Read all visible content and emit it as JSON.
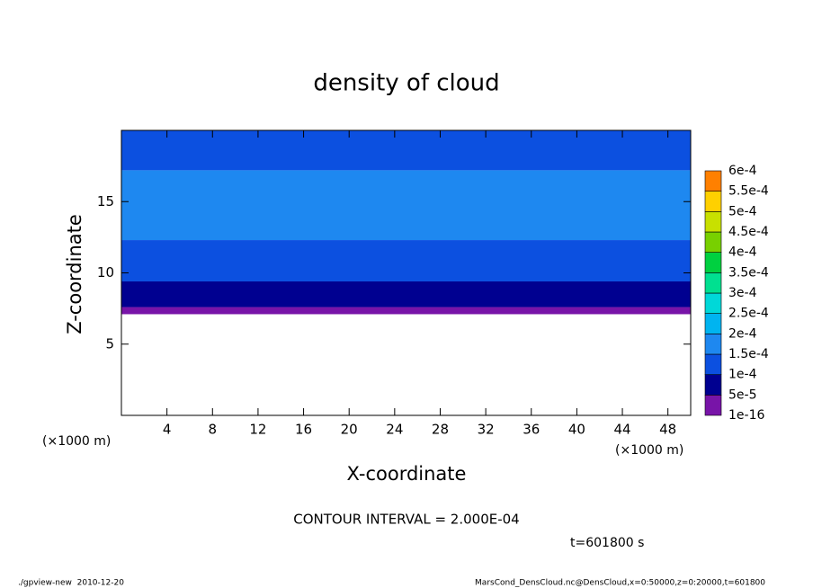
{
  "chart_data": {
    "type": "contour",
    "title": "density of cloud",
    "x_label": "X-coordinate",
    "y_label": "Z-coordinate",
    "x_unit_left": "(×1000 m)",
    "x_unit_right": "(×1000 m)",
    "xlim": [
      0,
      50
    ],
    "ylim": [
      0,
      20
    ],
    "xticks": [
      4,
      8,
      12,
      16,
      20,
      24,
      28,
      32,
      36,
      40,
      44,
      48
    ],
    "yticks": [
      5,
      10,
      15
    ],
    "levels": [
      {
        "value": 1e-16,
        "label": "1e-16"
      },
      {
        "value": 5e-05,
        "label": "5e-5"
      },
      {
        "value": 0.0001,
        "label": "1e-4"
      },
      {
        "value": 0.00015,
        "label": "1.5e-4"
      },
      {
        "value": 0.0002,
        "label": "2e-4"
      },
      {
        "value": 0.00025,
        "label": "2.5e-4"
      },
      {
        "value": 0.0003,
        "label": "3e-4"
      },
      {
        "value": 0.00035,
        "label": "3.5e-4"
      },
      {
        "value": 0.0004,
        "label": "4e-4"
      },
      {
        "value": 0.00045,
        "label": "4.5e-4"
      },
      {
        "value": 0.0005,
        "label": "5e-4"
      },
      {
        "value": 0.00055,
        "label": "5.5e-4"
      },
      {
        "value": 0.0006,
        "label": "6e-4"
      }
    ],
    "colors": [
      "#7814a8",
      "#000090",
      "#0c50e0",
      "#1e88f0",
      "#00b4f0",
      "#00d8d8",
      "#00e090",
      "#00d040",
      "#78d000",
      "#c8e000",
      "#ffd000",
      "#ff8000",
      "#ff3c1e",
      "#f08080"
    ],
    "profile": [
      {
        "z": [
          7.1,
          7.6
        ],
        "level": 0
      },
      {
        "z": [
          7.6,
          9.4
        ],
        "level": 1
      },
      {
        "z": [
          9.4,
          12.3
        ],
        "level": 2
      },
      {
        "z": [
          12.3,
          17.2
        ],
        "level": 3
      },
      {
        "z": [
          17.2,
          20
        ],
        "level": 2
      }
    ],
    "contour_note": "CONTOUR INTERVAL = 2.000E-04",
    "time_label": "t=601800 s",
    "footer_left": "./gpview-new  2010-12-20",
    "footer_right": "MarsCond_DensCloud.nc@DensCloud,x=0:50000,z=0:20000,t=601800"
  }
}
